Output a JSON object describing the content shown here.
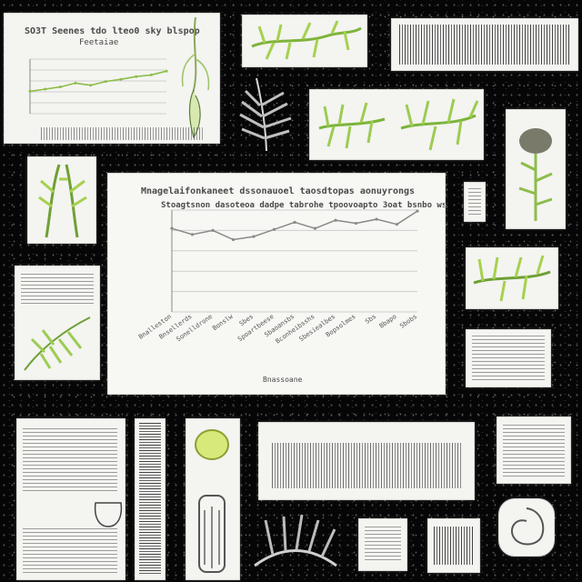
{
  "collage": {
    "main_chart": {
      "title_line1": "Mnagelaifonkaneet dssonauoel taosdtopas aonuyrongs",
      "title_line2": "Stoagtsnon dasoteoa dadpe tabrohe tpoovoapto 3oat bsnbo ws hlltn",
      "xlabel": "Bnassoane"
    },
    "small_chart": {
      "title_line1": "SO3T Seenes tdo lteo0 sky blspop",
      "title_line2": "Feetaiae"
    }
  },
  "chart_data": [
    {
      "type": "line",
      "title": "Mnagelaifonkaneet dssonauoel taosdtopas aonuyrongs",
      "subtitle": "Stoagtsnon dasoteoa dadpe tabrohe tpoovoapto 3oat bsnbo ws hlltn",
      "xlabel": "Bnassoane",
      "ylabel": "",
      "ylim": [
        0,
        10
      ],
      "grid": true,
      "x": [
        "Bnalleston",
        "Bnsellerds",
        "Sonelldrone",
        "Bonslw",
        "Sbes",
        "Spoartbeese",
        "Sbaoansbs",
        "Bconheibsshs",
        "Sbesiealbes",
        "Bopsolmes",
        "Sbs",
        "Bbapo",
        "Sbobs"
      ],
      "series": [
        {
          "values": [
            8.2,
            7.6,
            8.0,
            7.1,
            7.4,
            8.1,
            8.8,
            8.2,
            9.0,
            8.7,
            9.1,
            8.6,
            9.9
          ]
        }
      ]
    },
    {
      "type": "line",
      "title": "SO3T Seenes tdo lteo0 sky blspop",
      "subtitle": "Feetaiae",
      "xlabel": "",
      "ylabel": "",
      "ylim": [
        0,
        10
      ],
      "grid": true,
      "x": [
        "",
        "",
        "",
        "",
        "",
        "",
        "",
        "",
        "",
        ""
      ],
      "series": [
        {
          "values": [
            4.1,
            4.5,
            4.9,
            5.6,
            5.2,
            5.9,
            6.3,
            6.8,
            7.1,
            7.8
          ]
        }
      ]
    }
  ]
}
